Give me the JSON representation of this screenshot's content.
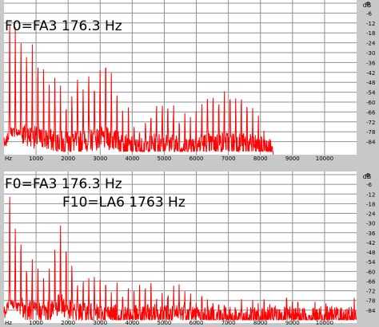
{
  "colors": {
    "background": "#ffffff",
    "grid": "#909090",
    "axis_strip": "#c8c8c8",
    "trace": "#ff0000",
    "text": "#000000"
  },
  "chart_data": [
    {
      "type": "line",
      "title": "",
      "annotations": [
        "F0=FA3 176.3 Hz"
      ],
      "xlabel": "",
      "ylabel": "",
      "x_unit_label": "Hz",
      "y_unit_label": "dB",
      "xlim": [
        0,
        11000
      ],
      "ylim": [
        -90,
        0
      ],
      "x_ticks": [
        1000,
        2000,
        3000,
        4000,
        5000,
        6000,
        7000,
        8000,
        9000,
        10000
      ],
      "y_ticks": [
        0,
        -6,
        -12,
        -18,
        -24,
        -30,
        -36,
        -42,
        -48,
        -54,
        -60,
        -66,
        -72,
        -78,
        -84
      ],
      "grid": true,
      "series": [
        {
          "color": "#ff0000",
          "f0": 176.3,
          "envelope": [
            [
              0,
              -82
            ],
            [
              176,
              -6
            ],
            [
              350,
              -14
            ],
            [
              530,
              -16
            ],
            [
              700,
              -24
            ],
            [
              900,
              -30
            ],
            [
              1100,
              -38
            ],
            [
              1300,
              -44
            ],
            [
              1500,
              -44
            ],
            [
              1700,
              -50
            ],
            [
              1900,
              -56
            ],
            [
              2200,
              -52
            ],
            [
              2500,
              -46
            ],
            [
              2800,
              -42
            ],
            [
              3000,
              -38
            ],
            [
              3200,
              -36
            ],
            [
              3400,
              -44
            ],
            [
              3600,
              -52
            ],
            [
              3800,
              -66
            ],
            [
              4000,
              -74
            ],
            [
              4200,
              -80
            ],
            [
              4400,
              -74
            ],
            [
              4700,
              -62
            ],
            [
              5000,
              -56
            ],
            [
              5300,
              -62
            ],
            [
              5600,
              -74
            ],
            [
              5900,
              -66
            ],
            [
              6200,
              -60
            ],
            [
              6600,
              -58
            ],
            [
              7000,
              -54
            ],
            [
              7400,
              -58
            ],
            [
              7800,
              -68
            ],
            [
              8000,
              -74
            ],
            [
              8200,
              -82
            ],
            [
              8400,
              -88
            ]
          ],
          "noise_floor": -90
        }
      ]
    },
    {
      "type": "line",
      "title": "",
      "annotations": [
        "F0=FA3 176.3 Hz",
        "F10=LA6 1763 Hz"
      ],
      "xlabel": "",
      "ylabel": "",
      "x_unit_label": "Hz",
      "y_unit_label": "dB",
      "xlim": [
        0,
        11000
      ],
      "ylim": [
        -90,
        0
      ],
      "x_ticks": [
        1000,
        2000,
        3000,
        4000,
        5000,
        6000,
        7000,
        8000,
        9000,
        10000
      ],
      "y_ticks": [
        0,
        -6,
        -12,
        -18,
        -24,
        -30,
        -36,
        -42,
        -48,
        -54,
        -60,
        -66,
        -72,
        -78,
        -84
      ],
      "grid": true,
      "series": [
        {
          "color": "#ff0000",
          "f0": 176.3,
          "envelope": [
            [
              0,
              -84
            ],
            [
              176,
              -8
            ],
            [
              350,
              -34
            ],
            [
              530,
              -38
            ],
            [
              700,
              -50
            ],
            [
              900,
              -56
            ],
            [
              1100,
              -60
            ],
            [
              1300,
              -62
            ],
            [
              1500,
              -52
            ],
            [
              1763,
              -24
            ],
            [
              1950,
              -46
            ],
            [
              2200,
              -62
            ],
            [
              2600,
              -66
            ],
            [
              3000,
              -70
            ],
            [
              3500,
              -72
            ],
            [
              4000,
              -76
            ],
            [
              4400,
              -72
            ],
            [
              4800,
              -70
            ],
            [
              5300,
              -74
            ],
            [
              5600,
              -66
            ],
            [
              5900,
              -74
            ],
            [
              6300,
              -80
            ],
            [
              7000,
              -84
            ],
            [
              8000,
              -84
            ],
            [
              9000,
              -82
            ],
            [
              10000,
              -82
            ],
            [
              11000,
              -82
            ]
          ],
          "noise_floor": -90
        }
      ]
    }
  ]
}
